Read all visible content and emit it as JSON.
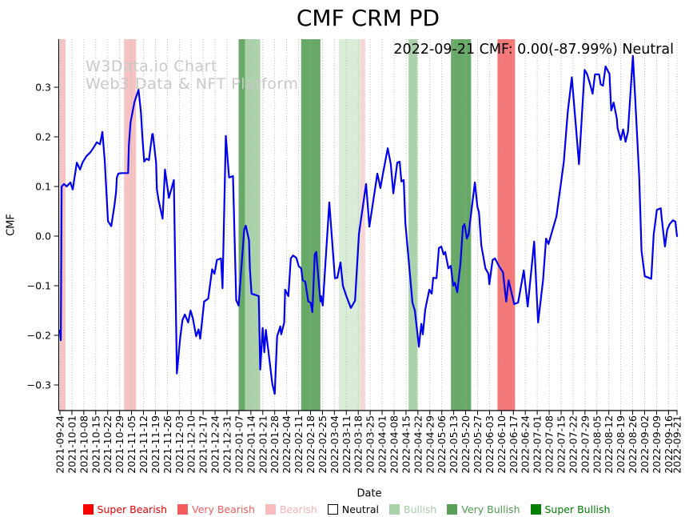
{
  "chart_data": {
    "type": "line",
    "title": "CMF CRM PD",
    "annotation": "2022-09-21 CMF: 0.00(-87.99%) Neutral",
    "watermark_line1": "W3Data.io Chart",
    "watermark_line2": "Web3 Data & NFT Platform",
    "xlabel": "Date",
    "ylabel": "CMF",
    "x_start_date": "2021-09-24",
    "x_span_days": 362,
    "ylim": [
      -0.352,
      0.397
    ],
    "yticks": [
      0.3,
      0.2,
      0.1,
      0.0,
      -0.1,
      -0.2,
      -0.3
    ],
    "grid": "vertical-dotted",
    "x_tick_labels": [
      "2021-09-24",
      "2021-10-01",
      "2021-10-08",
      "2021-10-15",
      "2021-10-22",
      "2021-10-29",
      "2021-11-05",
      "2021-11-12",
      "2021-11-19",
      "2021-11-26",
      "2021-12-03",
      "2021-12-10",
      "2021-12-17",
      "2021-12-24",
      "2021-12-31",
      "2022-01-07",
      "2022-01-14",
      "2022-01-21",
      "2022-01-28",
      "2022-02-04",
      "2022-02-11",
      "2022-02-18",
      "2022-02-25",
      "2022-03-04",
      "2022-03-11",
      "2022-03-18",
      "2022-03-25",
      "2022-04-01",
      "2022-04-08",
      "2022-04-15",
      "2022-04-22",
      "2022-04-29",
      "2022-05-06",
      "2022-05-13",
      "2022-05-20",
      "2022-05-27",
      "2022-06-03",
      "2022-06-10",
      "2022-06-17",
      "2022-06-24",
      "2022-07-01",
      "2022-07-08",
      "2022-07-15",
      "2022-07-22",
      "2022-07-29",
      "2022-08-05",
      "2022-08-12",
      "2022-08-19",
      "2022-08-26",
      "2022-09-02",
      "2022-09-09",
      "2022-09-16",
      "2022-09-21"
    ],
    "bands": [
      {
        "from_day": 0,
        "to_day": 3.3,
        "level": "Bearish",
        "color": "#f6c3c3"
      },
      {
        "from_day": 37.6,
        "to_day": 44.7,
        "level": "Bearish",
        "color": "#f6c3c3"
      },
      {
        "from_day": 104.8,
        "to_day": 108.6,
        "level": "Very Bullish",
        "color": "#67a967"
      },
      {
        "from_day": 108.6,
        "to_day": 117.5,
        "level": "Bullish",
        "color": "#abd2ab"
      },
      {
        "from_day": 141.5,
        "to_day": 152.8,
        "level": "Very Bullish",
        "color": "#67a967"
      },
      {
        "from_day": 163.6,
        "to_day": 176.3,
        "level": "Bullish",
        "color": "#d8ecd8"
      },
      {
        "from_day": 176.3,
        "to_day": 179.1,
        "level": "Bearish",
        "color": "#f9d6d6"
      },
      {
        "from_day": 204.5,
        "to_day": 209.7,
        "level": "Bullish",
        "color": "#abd2ab"
      },
      {
        "from_day": 229.4,
        "to_day": 241.2,
        "level": "Very Bullish",
        "color": "#67a967"
      },
      {
        "from_day": 256.7,
        "to_day": 267,
        "level": "Very Bearish",
        "color": "#f57878"
      }
    ],
    "series": [
      {
        "name": "CMF",
        "color": "#0000ee",
        "points": [
          [
            0,
            -0.19
          ],
          [
            0.5,
            -0.21
          ],
          [
            1,
            0.1
          ],
          [
            2.4,
            0.105
          ],
          [
            4,
            0.1
          ],
          [
            6.1,
            0.108
          ],
          [
            7.5,
            0.094
          ],
          [
            9.9,
            0.148
          ],
          [
            11.8,
            0.134
          ],
          [
            13.2,
            0.148
          ],
          [
            15.5,
            0.161
          ],
          [
            17.9,
            0.169
          ],
          [
            20.2,
            0.181
          ],
          [
            21.6,
            0.189
          ],
          [
            23.5,
            0.185
          ],
          [
            24.9,
            0.21
          ],
          [
            26.3,
            0.15
          ],
          [
            28.2,
            0.03
          ],
          [
            30.1,
            0.02
          ],
          [
            32,
            0.062
          ],
          [
            32.9,
            0.089
          ],
          [
            33.4,
            0.118
          ],
          [
            34.3,
            0.126
          ],
          [
            36.2,
            0.127
          ],
          [
            40,
            0.127
          ],
          [
            40.4,
            0.182
          ],
          [
            41.4,
            0.229
          ],
          [
            43.7,
            0.27
          ],
          [
            46.1,
            0.295
          ],
          [
            47.5,
            0.25
          ],
          [
            48.4,
            0.198
          ],
          [
            49.4,
            0.15
          ],
          [
            50.8,
            0.156
          ],
          [
            52.2,
            0.153
          ],
          [
            54.1,
            0.205
          ],
          [
            54.5,
            0.206
          ],
          [
            56.4,
            0.148
          ],
          [
            56.9,
            0.094
          ],
          [
            57.8,
            0.073
          ],
          [
            60.2,
            0.035
          ],
          [
            61.6,
            0.134
          ],
          [
            63.9,
            0.077
          ],
          [
            66.8,
            0.113
          ],
          [
            68.6,
            -0.277
          ],
          [
            70.5,
            -0.207
          ],
          [
            71.9,
            -0.169
          ],
          [
            73.3,
            -0.158
          ],
          [
            75.2,
            -0.174
          ],
          [
            76.6,
            -0.15
          ],
          [
            78,
            -0.166
          ],
          [
            79.9,
            -0.202
          ],
          [
            81.3,
            -0.188
          ],
          [
            82.3,
            -0.207
          ],
          [
            84.6,
            -0.132
          ],
          [
            87,
            -0.126
          ],
          [
            89.3,
            -0.067
          ],
          [
            90.7,
            -0.076
          ],
          [
            92.1,
            -0.048
          ],
          [
            94.5,
            -0.045
          ],
          [
            95.4,
            -0.105
          ],
          [
            97.3,
            0.202
          ],
          [
            99.2,
            0.118
          ],
          [
            101.5,
            0.121
          ],
          [
            103.4,
            -0.129
          ],
          [
            104.8,
            -0.14
          ],
          [
            108.1,
            0.013
          ],
          [
            109,
            0.021
          ],
          [
            110.9,
            -0.008
          ],
          [
            111.4,
            -0.065
          ],
          [
            112.4,
            -0.116
          ],
          [
            114.2,
            -0.118
          ],
          [
            116.6,
            -0.121
          ],
          [
            117.5,
            -0.269
          ],
          [
            118.9,
            -0.185
          ],
          [
            119.9,
            -0.234
          ],
          [
            120.8,
            -0.189
          ],
          [
            124.6,
            -0.298
          ],
          [
            126,
            -0.318
          ],
          [
            127.4,
            -0.202
          ],
          [
            129.3,
            -0.182
          ],
          [
            129.8,
            -0.198
          ],
          [
            131.6,
            -0.174
          ],
          [
            132.1,
            -0.108
          ],
          [
            134,
            -0.121
          ],
          [
            135.4,
            -0.045
          ],
          [
            136.8,
            -0.039
          ],
          [
            138.7,
            -0.044
          ],
          [
            140.1,
            -0.061
          ],
          [
            141.5,
            -0.065
          ],
          [
            142.4,
            -0.089
          ],
          [
            143.9,
            -0.092
          ],
          [
            145.7,
            -0.132
          ],
          [
            147.1,
            -0.134
          ],
          [
            148.1,
            -0.153
          ],
          [
            149.5,
            -0.037
          ],
          [
            150.4,
            -0.032
          ],
          [
            150.9,
            -0.056
          ],
          [
            152.8,
            -0.132
          ],
          [
            153.2,
            -0.121
          ],
          [
            154.2,
            -0.14
          ],
          [
            158,
            0.068
          ],
          [
            159.9,
            -0.02
          ],
          [
            161.3,
            -0.085
          ],
          [
            162.7,
            -0.084
          ],
          [
            164.6,
            -0.053
          ],
          [
            166,
            -0.1
          ],
          [
            167.9,
            -0.12
          ],
          [
            170.7,
            -0.145
          ],
          [
            173.1,
            -0.13
          ],
          [
            174.5,
            -0.05
          ],
          [
            175.4,
            0.005
          ],
          [
            179.6,
            0.105
          ],
          [
            181.5,
            0.019
          ],
          [
            186.2,
            0.126
          ],
          [
            188,
            0.097
          ],
          [
            189.4,
            0.124
          ],
          [
            192.3,
            0.177
          ],
          [
            194.1,
            0.145
          ],
          [
            195.6,
            0.086
          ],
          [
            197.9,
            0.148
          ],
          [
            199.3,
            0.15
          ],
          [
            200.3,
            0.11
          ],
          [
            201.7,
            0.113
          ],
          [
            202.6,
            0.027
          ],
          [
            204.5,
            -0.045
          ],
          [
            205,
            -0.065
          ],
          [
            206.8,
            -0.134
          ],
          [
            208.2,
            -0.15
          ],
          [
            210.6,
            -0.223
          ],
          [
            212,
            -0.177
          ],
          [
            212.9,
            -0.198
          ],
          [
            214.3,
            -0.148
          ],
          [
            216.7,
            -0.108
          ],
          [
            218.1,
            -0.116
          ],
          [
            219,
            -0.084
          ],
          [
            220.9,
            -0.085
          ],
          [
            222.3,
            -0.024
          ],
          [
            223.7,
            -0.021
          ],
          [
            225.1,
            -0.037
          ],
          [
            226,
            -0.032
          ],
          [
            227.9,
            -0.065
          ],
          [
            229.3,
            -0.06
          ],
          [
            230.7,
            -0.1
          ],
          [
            231.7,
            -0.094
          ],
          [
            233.1,
            -0.113
          ],
          [
            235,
            -0.053
          ],
          [
            236.4,
            0.019
          ],
          [
            237.3,
            0.024
          ],
          [
            238.7,
            -0.005
          ],
          [
            239.7,
            0.003
          ],
          [
            243.4,
            0.108
          ],
          [
            244.9,
            0.059
          ],
          [
            245.8,
            0.048
          ],
          [
            247.2,
            -0.019
          ],
          [
            249.6,
            -0.065
          ],
          [
            251.4,
            -0.076
          ],
          [
            251.9,
            -0.097
          ],
          [
            253.8,
            -0.048
          ],
          [
            255.2,
            -0.045
          ],
          [
            257.5,
            -0.06
          ],
          [
            259.9,
            -0.073
          ],
          [
            261.8,
            -0.132
          ],
          [
            263.2,
            -0.089
          ],
          [
            266.5,
            -0.137
          ],
          [
            268.8,
            -0.134
          ],
          [
            272.1,
            -0.069
          ],
          [
            274.4,
            -0.142
          ],
          [
            278.2,
            -0.011
          ],
          [
            280.5,
            -0.174
          ],
          [
            283.4,
            -0.089
          ],
          [
            285.2,
            -0.005
          ],
          [
            286.6,
            -0.016
          ],
          [
            291.3,
            0.04
          ],
          [
            293.2,
            0.089
          ],
          [
            295.6,
            0.15
          ],
          [
            297.9,
            0.25
          ],
          [
            300.3,
            0.32
          ],
          [
            304.5,
            0.145
          ],
          [
            307.8,
            0.335
          ],
          [
            309.2,
            0.327
          ],
          [
            310.6,
            0.311
          ],
          [
            312.5,
            0.287
          ],
          [
            313.9,
            0.326
          ],
          [
            316.3,
            0.326
          ],
          [
            317.2,
            0.306
          ],
          [
            318.6,
            0.303
          ],
          [
            320.1,
            0.342
          ],
          [
            322.4,
            0.327
          ],
          [
            323.4,
            0.253
          ],
          [
            324.8,
            0.269
          ],
          [
            326.7,
            0.237
          ],
          [
            327.1,
            0.218
          ],
          [
            329,
            0.194
          ],
          [
            330.4,
            0.215
          ],
          [
            331.8,
            0.19
          ],
          [
            333.2,
            0.21
          ],
          [
            336.1,
            0.363
          ],
          [
            337.5,
            0.274
          ],
          [
            339.8,
            0.12
          ],
          [
            341.2,
            -0.03
          ],
          [
            343.1,
            -0.081
          ],
          [
            346.9,
            -0.086
          ],
          [
            348.3,
            0.003
          ],
          [
            350.2,
            0.053
          ],
          [
            352.5,
            0.056
          ],
          [
            353,
            0.037
          ],
          [
            354.9,
            -0.021
          ],
          [
            356.3,
            0.013
          ],
          [
            357.7,
            0.024
          ],
          [
            359.6,
            0.032
          ],
          [
            361,
            0.029
          ],
          [
            362,
            0
          ]
        ]
      }
    ],
    "legend": [
      {
        "label": "Super Bearish",
        "color": "#fe0000",
        "text_color": "#e80000"
      },
      {
        "label": "Very Bearish",
        "color": "#f25c5c",
        "text_color": "#f25c5c"
      },
      {
        "label": "Bearish",
        "color": "#f8bcbc",
        "text_color": "#f5b2b2"
      },
      {
        "label": "Neutral",
        "color": "#ffffff",
        "text_color": "#000000"
      },
      {
        "label": "Bullish",
        "color": "#abd3ab",
        "text_color": "#a5cfa5"
      },
      {
        "label": "Very Bullish",
        "color": "#5aa05a",
        "text_color": "#4f9a4f"
      },
      {
        "label": "Super Bullish",
        "color": "#018001",
        "text_color": "#017d01"
      }
    ]
  }
}
